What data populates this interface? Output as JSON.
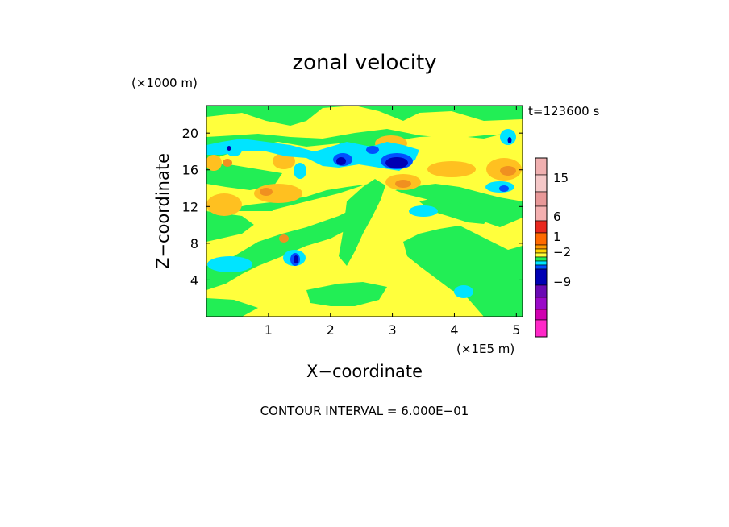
{
  "chart_data": {
    "type": "heatmap",
    "title": "zonal velocity",
    "xlabel": "X−coordinate",
    "ylabel": "Z−coordinate",
    "x_unit": "(×1E5 m)",
    "y_unit": "(×1000 m)",
    "time_label": "t=123600 s",
    "footer": "CONTOUR INTERVAL = 6.000E−01",
    "xlim": [
      0,
      5.1
    ],
    "ylim": [
      0,
      23
    ],
    "x_ticks": [
      1,
      2,
      3,
      4,
      5
    ],
    "y_ticks": [
      4,
      8,
      12,
      16,
      20
    ],
    "colorbar": {
      "levels": [
        {
          "color": "#f0b0b0"
        },
        {
          "color": "#f5c8c8"
        },
        {
          "color": "#e89898"
        },
        {
          "color": "#f4b0b0"
        },
        {
          "color": "#e8281e"
        },
        {
          "color": "#ff6a00"
        },
        {
          "color": "#ff9900"
        },
        {
          "color": "#ffd200"
        },
        {
          "color": "#ffff3c"
        },
        {
          "color": "#22ee55"
        },
        {
          "color": "#00e4ff"
        },
        {
          "color": "#0050ff"
        },
        {
          "color": "#0000b4"
        },
        {
          "color": "#6a0ab4"
        },
        {
          "color": "#9a0ac8"
        },
        {
          "color": "#d000b0"
        },
        {
          "color": "#ff28c8"
        }
      ],
      "tick_labels": [
        "15",
        "6",
        "1",
        "−2",
        "−9"
      ]
    },
    "field_colors": {
      "background": "#22ee55",
      "yellow": "#ffff3c",
      "orange": "#ffc020",
      "dark_orange": "#f0a000",
      "cyan": "#00e4ff",
      "blue": "#0050ff",
      "dark_blue": "#0000b4"
    }
  }
}
